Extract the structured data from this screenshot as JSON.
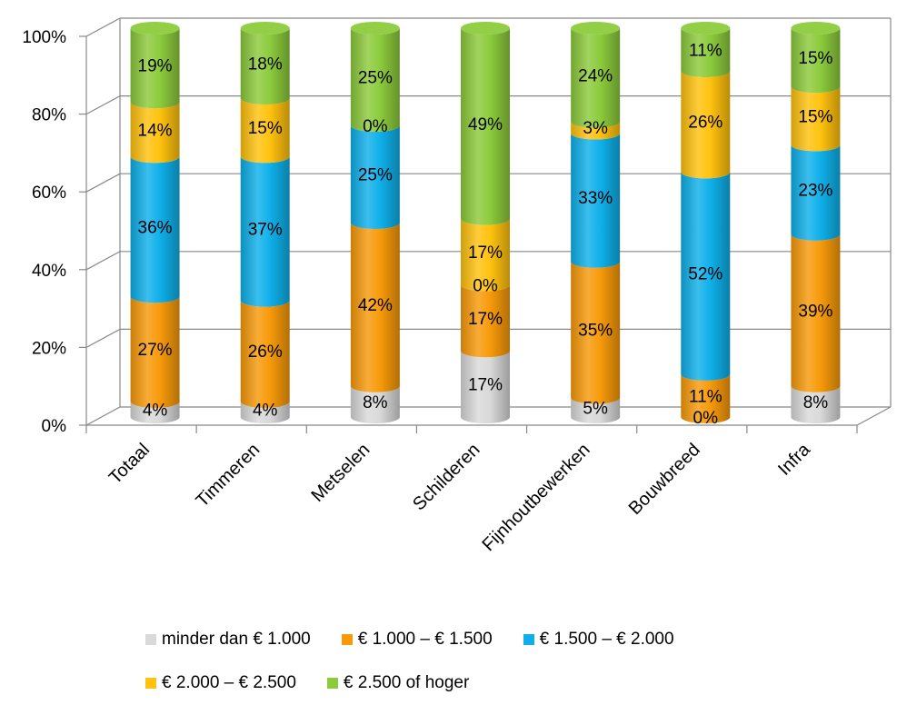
{
  "chart_data": {
    "type": "bar",
    "stacked": true,
    "percent": true,
    "style": "3d-cylinder",
    "categories": [
      "Totaal",
      "Timmeren",
      "Metselen",
      "Schilderen",
      "Fijnhoutbewerken",
      "Bouwbreed",
      "Infra"
    ],
    "series": [
      {
        "name": "minder dan € 1.000",
        "color": "#D9D9D9",
        "values": [
          4,
          4,
          8,
          17,
          5,
          0,
          8
        ]
      },
      {
        "name": "€ 1.000 – € 1.500",
        "color": "#F79A0A",
        "values": [
          27,
          26,
          42,
          17,
          35,
          11,
          39
        ]
      },
      {
        "name": "€ 1.500 – € 2.000",
        "color": "#0FB0EA",
        "values": [
          36,
          37,
          25,
          0,
          33,
          52,
          23
        ]
      },
      {
        "name": "€ 2.000 – € 2.500",
        "color": "#FFC20E",
        "values": [
          14,
          15,
          0,
          17,
          3,
          26,
          15
        ]
      },
      {
        "name": "€ 2.500 of hoger",
        "color": "#8CCB3C",
        "values": [
          19,
          18,
          25,
          49,
          24,
          11,
          15
        ]
      }
    ],
    "y_ticks": [
      "0%",
      "20%",
      "40%",
      "60%",
      "80%",
      "100%"
    ],
    "ylim": [
      0,
      100
    ],
    "grid": true,
    "legend_position": "bottom",
    "title": "",
    "xlabel": "",
    "ylabel": ""
  }
}
